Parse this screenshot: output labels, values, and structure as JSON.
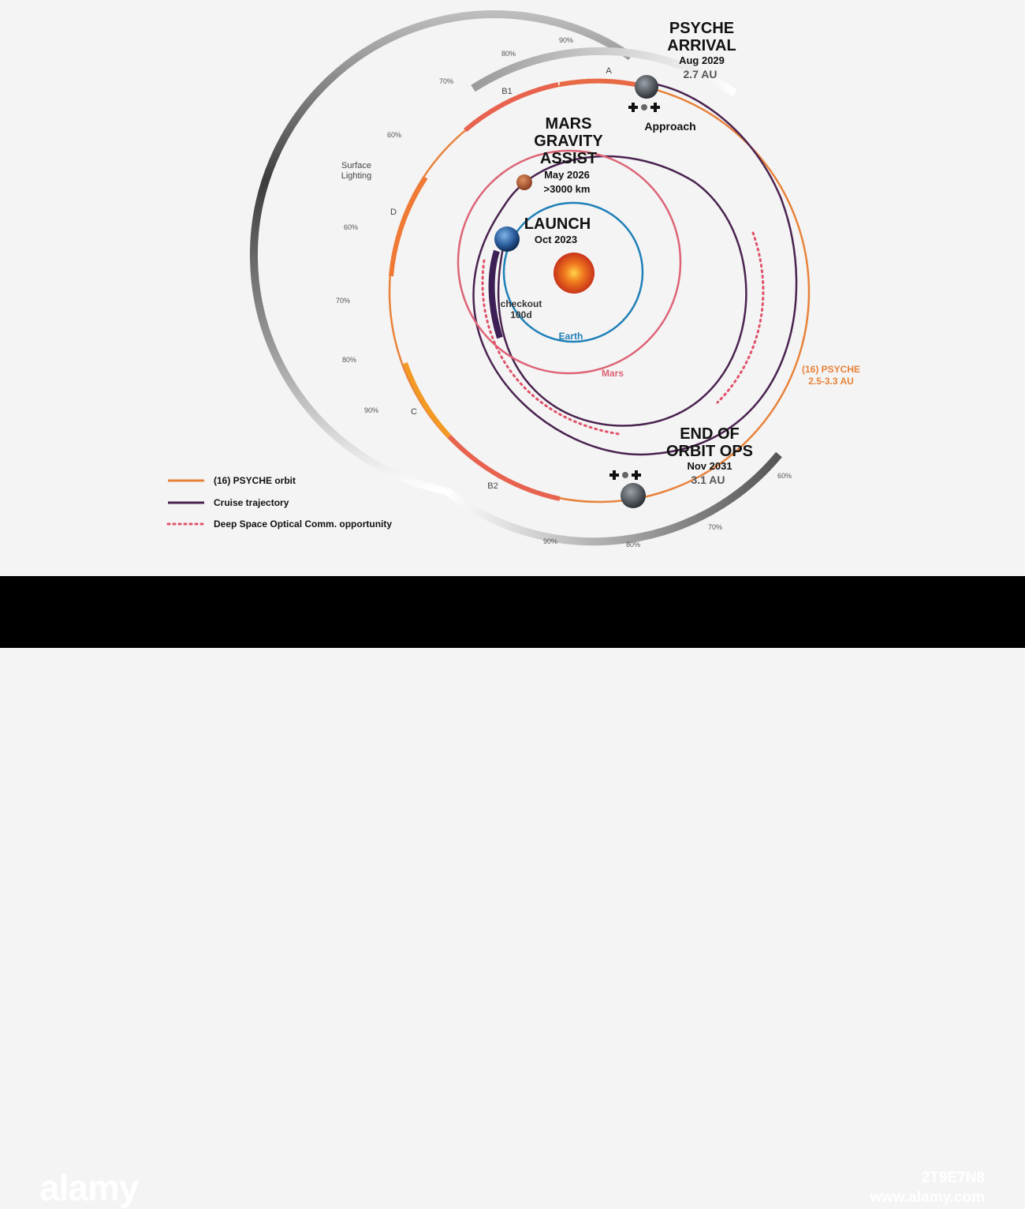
{
  "colors": {
    "background": "#f4f4f4",
    "psyche_orbit": "#e8823a",
    "cruise": "#4a2350",
    "optical": "#e0526a",
    "earth_orbit": "#1f7fb8",
    "mars_orbit": "#dd6476",
    "footer": "#000000"
  },
  "events": {
    "arrival": {
      "title_1": "PSYCHE",
      "title_2": "ARRIVAL",
      "date": "Aug 2029",
      "distance": "2.7 AU"
    },
    "approach": "Approach",
    "mars_assist": {
      "title_1": "MARS",
      "title_2": "GRAVITY",
      "title_3": "ASSIST",
      "date": "May 2026",
      "distance": ">3000 km"
    },
    "launch": {
      "title": "LAUNCH",
      "date": "Oct 2023"
    },
    "checkout": {
      "line1": "checkout",
      "line2": "100d"
    },
    "end_ops": {
      "title_1": "END OF",
      "title_2": "ORBIT OPS",
      "date": "Nov 2031",
      "distance": "3.1 AU"
    }
  },
  "orbit_labels": {
    "earth": "Earth",
    "mars": "Mars",
    "psyche_1": "(16) PSYCHE",
    "psyche_2": "2.5-3.3 AU"
  },
  "phase_labels": {
    "a": "A",
    "b1": "B1",
    "b2": "B2",
    "c": "C",
    "d": "D"
  },
  "surface_lighting": {
    "line1": "Surface",
    "line2": "Lighting"
  },
  "lighting_percent_labels": [
    "90%",
    "80%",
    "70%",
    "60%",
    "60%",
    "70%",
    "80%",
    "90%",
    "60%",
    "70%",
    "80%",
    "90%"
  ],
  "legend": [
    {
      "label": "(16) PSYCHE orbit",
      "style": "solid",
      "color": "#e8823a"
    },
    {
      "label": "Cruise trajectory",
      "style": "solid",
      "color": "#4a2350"
    },
    {
      "label": "Deep Space Optical Comm. opportunity",
      "style": "dotted",
      "color": "#e0526a"
    }
  ],
  "watermark": {
    "brand": "alamy",
    "image_id": "2T9E7N8",
    "url": "www.alamy.com"
  }
}
